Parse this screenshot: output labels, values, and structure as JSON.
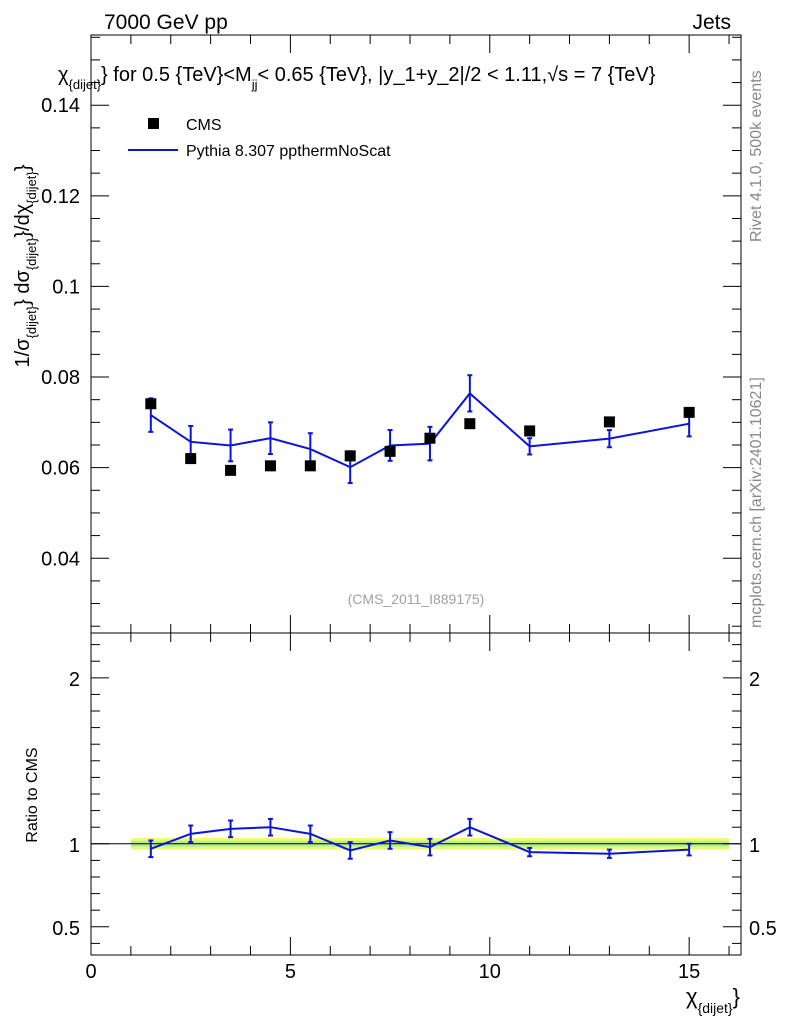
{
  "header": {
    "energy_label": "7000 GeV pp",
    "process_label": "Jets"
  },
  "side_labels": {
    "rivet": "Rivet 4.1.0,  500k events",
    "mcplots": "mcplots.cern.ch [arXiv:2401.10621]"
  },
  "colors": {
    "data": "#000000",
    "mc": "#0a14d8",
    "band_yellow": "#f0fa74",
    "band_green": "#b4f08c"
  },
  "chart_data": [
    {
      "type": "scatter",
      "panel": "main",
      "title": "χ_{dijet} for 0.5 {TeV}<M_jj< 0.65 {TeV}, |y_1+y_2|/2 < 1.11,√s = 7 {TeV}",
      "title_parts": {
        "chi": "χ",
        "chi_sub": "{dijet}",
        "part1": "} for 0.5 {TeV}<M",
        "mjj_sub": "jj",
        "part2": "< 0.65 {TeV}, |y_1+y_2|/2 < 1.11,√s = 7 {TeV}"
      },
      "ylabel": "1/σ_{dijet} dσ_{dijet}/dχ_{dijet}",
      "ylabel_parts": {
        "p1": "1/σ",
        "s1": "{dijet}",
        "p2": "} dσ",
        "s2": "{dijet}",
        "p3": "}/dχ",
        "s3": "{dijet}",
        "p4": "}"
      },
      "xlim": [
        0,
        16.3
      ],
      "ylim": [
        0.0235,
        0.1555
      ],
      "yticks": [
        0.04,
        0.06,
        0.08,
        0.1,
        0.12,
        0.14
      ],
      "ytick_labels": [
        "0.04",
        "0.06",
        "0.08",
        "0.1",
        "0.12",
        "0.14"
      ],
      "watermark": "(CMS_2011_I889175)",
      "legend_position": "top-left",
      "series": [
        {
          "name": "CMS",
          "kind": "markers",
          "x": [
            1.5,
            2.5,
            3.5,
            4.5,
            5.5,
            6.5,
            7.5,
            8.5,
            9.5,
            11.0,
            13.0,
            15.0
          ],
          "y": [
            0.0741,
            0.062,
            0.0594,
            0.0604,
            0.0604,
            0.0626,
            0.0636,
            0.0665,
            0.0697,
            0.0681,
            0.0701,
            0.0722
          ]
        },
        {
          "name": "Pythia 8.307 ppthermNoScat",
          "kind": "line",
          "x": [
            1.5,
            2.5,
            3.5,
            4.5,
            5.5,
            6.5,
            7.5,
            8.5,
            9.5,
            11.0,
            13.0,
            15.0
          ],
          "y": [
            0.0716,
            0.0657,
            0.0649,
            0.0665,
            0.0641,
            0.0601,
            0.0649,
            0.0653,
            0.0764,
            0.0647,
            0.0664,
            0.0697
          ],
          "err": [
            0.0037,
            0.0035,
            0.0035,
            0.0035,
            0.0035,
            0.0035,
            0.0034,
            0.0037,
            0.004,
            0.0018,
            0.0019,
            0.0028
          ]
        }
      ]
    },
    {
      "type": "line",
      "panel": "ratio",
      "ylabel": "Ratio to CMS",
      "xlabel": "χ_{dijet}",
      "xlabel_parts": {
        "chi": "χ",
        "sub": "{dijet}",
        "close": "}"
      },
      "xlim": [
        0,
        16.3
      ],
      "ylim": [
        0.33,
        2.27
      ],
      "yticks": [
        0.5,
        1,
        2
      ],
      "ytick_labels": [
        "0.5",
        "1",
        "2"
      ],
      "xticks": [
        0,
        5,
        10,
        15
      ],
      "xtick_labels": [
        "0",
        "5",
        "10",
        "15"
      ],
      "band": {
        "xmin": 1.0,
        "xmax": 16.0,
        "yellow": [
          0.965,
          1.035
        ],
        "green": [
          0.982,
          1.018
        ]
      },
      "reference": 1.0,
      "series": [
        {
          "name": "Pythia 8.307 ppthermNoScat / CMS",
          "x": [
            1.5,
            2.5,
            3.5,
            4.5,
            5.5,
            6.5,
            7.5,
            8.5,
            9.5,
            11.0,
            13.0,
            15.0
          ],
          "y": [
            0.97,
            1.06,
            1.09,
            1.1,
            1.06,
            0.96,
            1.02,
            0.98,
            1.1,
            0.95,
            0.94,
            0.965
          ],
          "err": [
            0.05,
            0.05,
            0.05,
            0.05,
            0.05,
            0.05,
            0.05,
            0.05,
            0.05,
            0.025,
            0.025,
            0.035
          ]
        }
      ]
    }
  ]
}
